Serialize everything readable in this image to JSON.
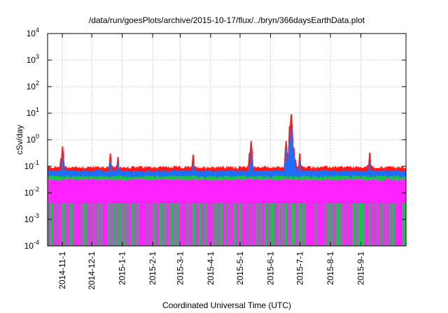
{
  "chart_data": {
    "type": "area",
    "title": "/data/run/goesPlots/archive/2015-10-17/flux/../bryn/366daysEarthData.plot",
    "xlabel": "Coordinated Universal Time (UTC)",
    "ylabel": "cSv/day",
    "yscale": "log",
    "ylim": [
      0.0001,
      10000
    ],
    "xlim": [
      "2014-10-17",
      "2015-10-17"
    ],
    "grid": true,
    "y_ticks": [
      {
        "base": "10",
        "exp": "-4",
        "value": 0.0001
      },
      {
        "base": "10",
        "exp": "-3",
        "value": 0.001
      },
      {
        "base": "10",
        "exp": "-2",
        "value": 0.01
      },
      {
        "base": "10",
        "exp": "-1",
        "value": 0.1
      },
      {
        "base": "10",
        "exp": "0",
        "value": 1
      },
      {
        "base": "10",
        "exp": "1",
        "value": 10
      },
      {
        "base": "10",
        "exp": "2",
        "value": 100
      },
      {
        "base": "10",
        "exp": "3",
        "value": 1000
      },
      {
        "base": "10",
        "exp": "4",
        "value": 10000
      }
    ],
    "x_ticks": [
      {
        "label": "2014-11-1",
        "date": "2014-11-01"
      },
      {
        "label": "2014-12-1",
        "date": "2014-12-01"
      },
      {
        "label": "2015-1-1",
        "date": "2015-01-01"
      },
      {
        "label": "2015-2-1",
        "date": "2015-02-01"
      },
      {
        "label": "2015-3-1",
        "date": "2015-03-01"
      },
      {
        "label": "2015-4-1",
        "date": "2015-04-01"
      },
      {
        "label": "2015-5-1",
        "date": "2015-05-01"
      },
      {
        "label": "2015-6-1",
        "date": "2015-06-01"
      },
      {
        "label": "2015-7-1",
        "date": "2015-07-01"
      },
      {
        "label": "2015-8-1",
        "date": "2015-08-01"
      },
      {
        "label": "2015-9-1",
        "date": "2015-09-01"
      }
    ],
    "series": [
      {
        "color": "#ff1a1a",
        "baseline": 0.09,
        "floor": 0.06
      },
      {
        "color": "#1f6fff",
        "baseline": 0.065,
        "floor": 0.045
      },
      {
        "color": "#20c050",
        "baseline": 0.045,
        "floor": 0.035
      },
      {
        "color": "#ff22ff",
        "baseline": 0.035,
        "floor": 0.004
      }
    ],
    "peaks": [
      {
        "date": "2014-11-01",
        "red": 0.55,
        "blue": 0.2
      },
      {
        "date": "2014-12-20",
        "red": 0.3,
        "blue": 0.15
      },
      {
        "date": "2014-12-28",
        "red": 0.22,
        "blue": 0.13
      },
      {
        "date": "2015-03-14",
        "red": 0.27,
        "blue": 0.12
      },
      {
        "date": "2015-05-12",
        "red": 0.9,
        "blue": 0.3
      },
      {
        "date": "2015-06-17",
        "red": 0.9,
        "blue": 0.4
      },
      {
        "date": "2015-06-22",
        "red": 9,
        "blue": 2.5
      },
      {
        "date": "2015-06-25",
        "red": 0.5,
        "blue": 0.25
      },
      {
        "date": "2015-07-01",
        "red": 0.3,
        "blue": 0.15
      },
      {
        "date": "2015-09-10",
        "red": 0.32,
        "blue": 0.14
      }
    ],
    "magenta_dropouts_to": 0.0001
  }
}
